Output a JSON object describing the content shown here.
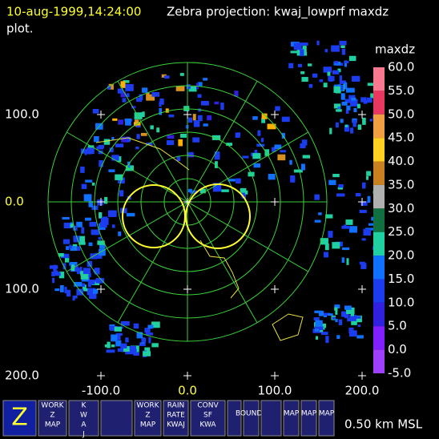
{
  "header": {
    "datetime": "10-aug-1999,14:24:00",
    "title": "Zebra projection: kwaj_lowprf maxdz",
    "line2": "plot."
  },
  "axes": {
    "y_labels": [
      "100.0",
      "0.0",
      "100.0",
      "200.0"
    ],
    "x_labels": [
      "-100.0",
      "0.0",
      "100.0",
      "200.0"
    ]
  },
  "colorbar": {
    "title": "maxdz",
    "labels": [
      "60.0",
      "55.0",
      "50.0",
      "45.0",
      "40.0",
      "35.0",
      "30.0",
      "25.0",
      "20.0",
      "15.0",
      "10.0",
      "5.0",
      "0.0",
      "-5.0"
    ]
  },
  "toolbar": {
    "buttons": [
      [
        "Z"
      ],
      [
        "WORK",
        "Z",
        "MAP"
      ],
      [
        "K",
        "W",
        "A",
        "J"
      ],
      [],
      [
        "WORK",
        "Z",
        "MAP"
      ],
      [
        "RAIN",
        "RATE",
        "KWAJ"
      ],
      [
        "CONV",
        "SF",
        "KWA"
      ],
      [],
      [
        "BOUNDS"
      ],
      [],
      [
        "MAP"
      ],
      [
        "MAP"
      ],
      [
        "MAP"
      ]
    ],
    "status": "0.50 km MSL"
  }
}
